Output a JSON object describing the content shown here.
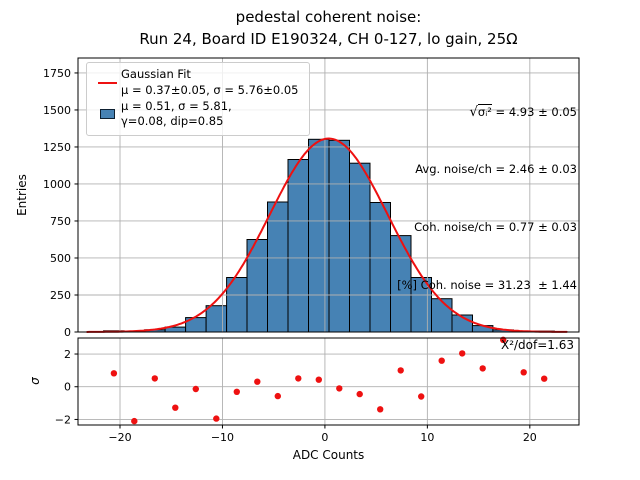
{
  "figure": {
    "title_line1": "pedestal coherent noise:",
    "title_line2": "Run 24, Board ID E190324, CH 0-127, lo gain, 25Ω"
  },
  "legend": {
    "item1_label": "Gaussian Fit",
    "item1_params": "μ = 0.37±0.05, σ = 5.76±0.05",
    "item2_line1": "μ = 0.51, σ = 5.81,",
    "item2_line2": "γ=0.08, dip=0.85"
  },
  "stats": {
    "line1_radical": "√",
    "line1_expr": "σᵢ²",
    "line1_value": " = 4.93 ± 0.05",
    "line2": "Avg. noise/ch = 2.46 ± 0.03",
    "line3": "Coh. noise/ch = 0.77 ± 0.03",
    "line4": "[%] Coh. noise = 31.23  ± 1.44"
  },
  "axes_labels": {
    "main_ylabel": "Entries",
    "residual_ylabel": "σ",
    "xlabel": "ADC Counts",
    "chi2_annotation": "X²/dof=1.63"
  },
  "colors": {
    "bar_fill": "#4682b4",
    "bar_edge": "#000000",
    "fit_line": "#ee1111",
    "residual_points": "#ee1111",
    "grid": "#b0b0b0",
    "spine": "#000000",
    "legend_border": "#cccccc"
  },
  "chart_data": {
    "type": "bar",
    "subtype": "histogram_with_gaussian_fit_and_residuals",
    "title": "pedestal coherent noise: Run 24, Board ID E190324, CH 0-127, lo gain, 25Ω",
    "xlabel": "ADC Counts",
    "ylabel_main": "Entries",
    "ylabel_residual": "σ",
    "histogram": {
      "bin_start": -21.6,
      "bin_width": 2,
      "bin_centers": [
        -20.6,
        -18.6,
        -16.6,
        -14.6,
        -12.6,
        -10.6,
        -8.6,
        -6.6,
        -4.6,
        -2.6,
        -0.6,
        1.4,
        3.4,
        5.4,
        7.4,
        9.4,
        11.4,
        13.4,
        15.4,
        17.4,
        19.4,
        21.4
      ],
      "counts": [
        8,
        2,
        15,
        33,
        97,
        178,
        368,
        625,
        878,
        1165,
        1302,
        1295,
        1140,
        875,
        651,
        368,
        225,
        115,
        43,
        14,
        7,
        3
      ]
    },
    "gaussian_fit": {
      "amplitude": 1307,
      "mu": 0.37,
      "mu_err": 0.05,
      "sigma": 5.76,
      "sigma_err": 0.05
    },
    "raw_stats": {
      "mu": 0.51,
      "sigma": 5.81,
      "gamma": 0.08,
      "dip": 0.85
    },
    "noise_summary": {
      "sqrt_sigma_i_sq": "4.93 ± 0.05",
      "avg_noise_per_ch": "2.46 ± 0.03",
      "coh_noise_per_ch": "0.77 ± 0.03",
      "pct_coh_noise": "31.23 ± 1.44"
    },
    "chi2_per_dof": 1.63,
    "residuals": {
      "x": [
        -20.6,
        -18.6,
        -16.6,
        -14.6,
        -12.6,
        -10.6,
        -8.6,
        -6.6,
        -4.6,
        -2.6,
        -0.6,
        1.4,
        3.4,
        5.4,
        7.4,
        9.4,
        11.4,
        13.4,
        15.4,
        17.4,
        19.4,
        21.4
      ],
      "sigma": [
        0.82,
        -2.1,
        0.51,
        -1.28,
        -0.14,
        -1.95,
        -0.31,
        0.31,
        -0.57,
        0.51,
        0.43,
        -0.1,
        -0.45,
        -1.38,
        1.0,
        -0.6,
        1.59,
        2.04,
        1.12,
        2.87,
        0.88,
        0.49
      ]
    },
    "main_axis": {
      "xlim": [
        -24.1,
        24.8
      ],
      "ylim": [
        0,
        1851
      ],
      "grid": true,
      "xticks": [
        {
          "v": -20,
          "label": "−20"
        },
        {
          "v": -10,
          "label": "−10"
        },
        {
          "v": 0,
          "label": "0"
        },
        {
          "v": 10,
          "label": "10"
        },
        {
          "v": 20,
          "label": "20"
        }
      ],
      "yticks": [
        {
          "v": 0,
          "label": "0"
        },
        {
          "v": 250,
          "label": "250"
        },
        {
          "v": 500,
          "label": "500"
        },
        {
          "v": 750,
          "label": "750"
        },
        {
          "v": 1000,
          "label": "1000"
        },
        {
          "v": 1250,
          "label": "1250"
        },
        {
          "v": 1500,
          "label": "1500"
        },
        {
          "v": 1750,
          "label": "1750"
        }
      ]
    },
    "residual_axis": {
      "ylim": [
        -2.34,
        2.98
      ],
      "grid": true,
      "yticks": [
        {
          "v": -2,
          "label": "−2"
        },
        {
          "v": 0,
          "label": "0"
        },
        {
          "v": 2,
          "label": "2"
        }
      ]
    },
    "legend_position": "upper left",
    "stats_position": "upper right"
  }
}
